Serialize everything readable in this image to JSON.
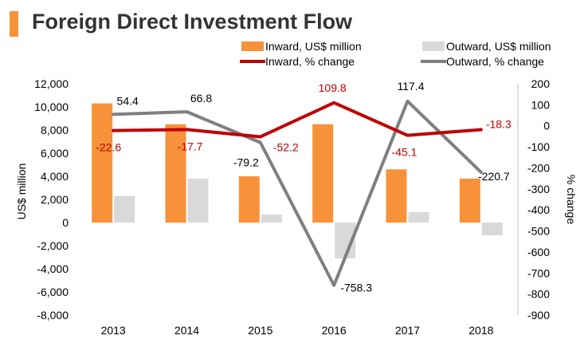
{
  "page": {
    "title": "Foreign Direct Investment Flow"
  },
  "colors": {
    "inward_bar": "#f7923a",
    "outward_bar": "#d9d9d9",
    "inward_line": "#c00000",
    "outward_line": "#7f7f7f",
    "title_bar": "#f7923a",
    "axis_text": "#000000",
    "inward_label": "#c00000",
    "outward_label": "#000000"
  },
  "chart_data": {
    "type": "bar",
    "title": "Foreign Direct Investment Flow",
    "categories": [
      "2013",
      "2014",
      "2015",
      "2016",
      "2017",
      "2018"
    ],
    "series": [
      {
        "name": "Inward, US$ million",
        "kind": "bar",
        "axis": "left",
        "values": [
          10300,
          8500,
          4000,
          8500,
          4600,
          3800
        ]
      },
      {
        "name": "Outward, US$ million",
        "kind": "bar",
        "axis": "left",
        "values": [
          2300,
          3800,
          700,
          -3100,
          900,
          -1100
        ]
      },
      {
        "name": "Inward, % change",
        "kind": "line",
        "axis": "right",
        "values": [
          -22.6,
          -17.7,
          -52.2,
          109.8,
          -45.1,
          -18.3
        ],
        "labels": [
          "-22.6",
          "-17.7",
          "-52.2",
          "109.8",
          "-45.1",
          "-18.3"
        ]
      },
      {
        "name": "Outward, % change",
        "kind": "line",
        "axis": "right",
        "values": [
          54.4,
          66.8,
          -79.2,
          -758.3,
          117.4,
          -220.7
        ],
        "labels": [
          "54.4",
          "66.8",
          "-79.2",
          "-758.3",
          "117.4",
          "-220.7"
        ]
      }
    ],
    "ylabel": "US$ million",
    "y2label": "% change",
    "ylim": [
      -8000,
      12000
    ],
    "y2lim": [
      -900,
      200
    ],
    "yticks": [
      "12,000",
      "10,000",
      "8,000",
      "6,000",
      "4,000",
      "2,000",
      "0",
      "-2,000",
      "-4,000",
      "-6,000",
      "-8,000"
    ],
    "ytick_values": [
      12000,
      10000,
      8000,
      6000,
      4000,
      2000,
      0,
      -2000,
      -4000,
      -6000,
      -8000
    ],
    "y2ticks": [
      "200",
      "100",
      "0",
      "-100",
      "-200",
      "-300",
      "-400",
      "-500",
      "-600",
      "-700",
      "-800",
      "-900"
    ],
    "y2tick_values": [
      200,
      100,
      0,
      -100,
      -200,
      -300,
      -400,
      -500,
      -600,
      -700,
      -800,
      -900
    ],
    "legend_position": "top",
    "grid": false
  }
}
